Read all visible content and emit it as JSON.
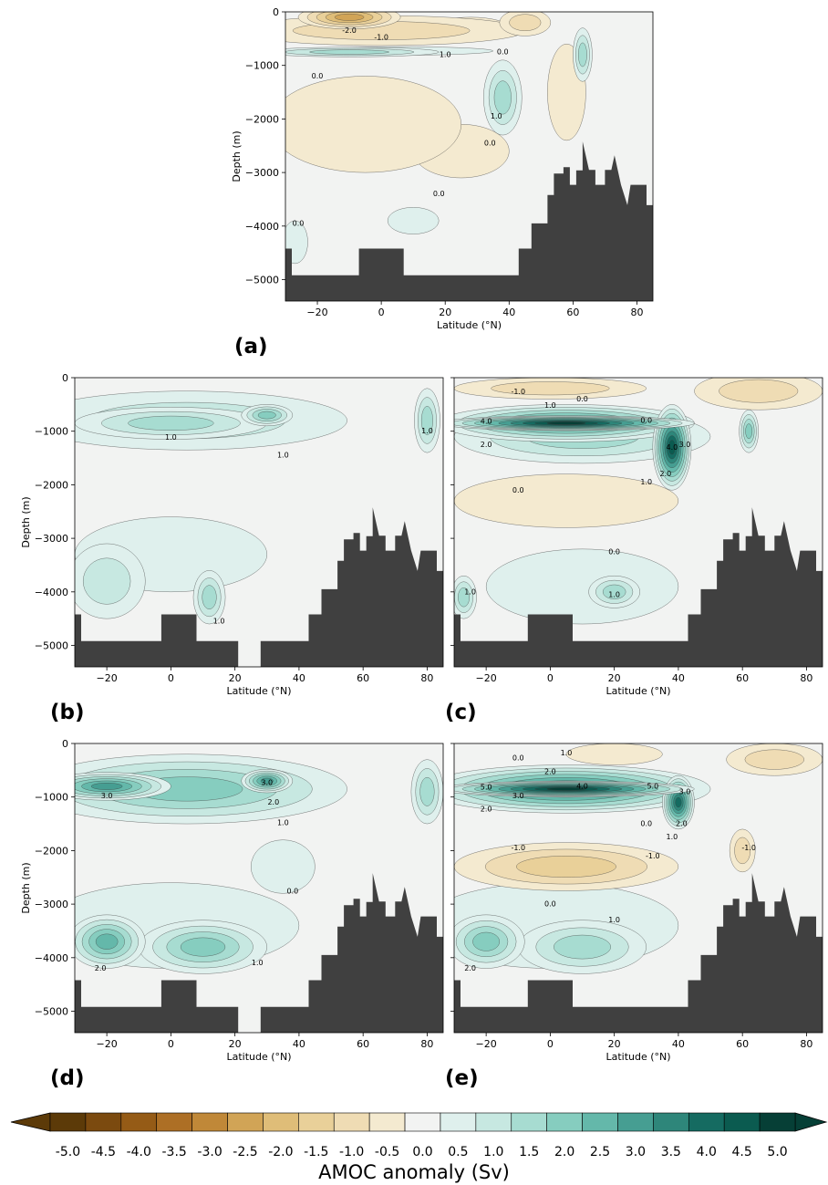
{
  "figure": {
    "colorbar": {
      "title": "AMOC anomaly  (Sv)",
      "levels": [
        -5.0,
        -4.5,
        -4.0,
        -3.5,
        -3.0,
        -2.5,
        -2.0,
        -1.5,
        -1.0,
        -0.5,
        0.0,
        0.5,
        1.0,
        1.5,
        2.0,
        2.5,
        3.0,
        3.5,
        4.0,
        4.5,
        5.0
      ],
      "tick_labels": [
        "-5.0",
        "-4.5",
        "-4.0",
        "-3.5",
        "-3.0",
        "-2.5",
        "-2.0",
        "-1.5",
        "-1.0",
        "-0.5",
        "0.0",
        "0.5",
        "1.0",
        "1.5",
        "2.0",
        "2.5",
        "3.0",
        "3.5",
        "4.0",
        "4.5",
        "5.0"
      ],
      "colors": [
        "#5c3a08",
        "#7b4a0f",
        "#955b16",
        "#ad6f25",
        "#c08838",
        "#d1a456",
        "#dfbd78",
        "#e9d099",
        "#efdcb4",
        "#f4ead0",
        "#f2f3f2",
        "#dff0ed",
        "#c7e8e1",
        "#a7dcd1",
        "#86cdbf",
        "#64b8aa",
        "#469e92",
        "#2e867a",
        "#156b61",
        "#0b5b50",
        "#063f36"
      ],
      "extend": "both"
    },
    "land_color": "#404040"
  },
  "chart_data": [
    {
      "panel": "(a)",
      "type": "heatmap",
      "xlabel": "Latitude (°N)",
      "ylabel": "Depth (m)",
      "xlim": [
        -30,
        85
      ],
      "ylim": [
        -5400,
        0
      ],
      "xticks": [
        -20,
        0,
        20,
        40,
        60,
        80
      ],
      "xtick_labels": [
        "−20",
        "0",
        "20",
        "40",
        "60",
        "80"
      ],
      "yticks": [
        0,
        -1000,
        -2000,
        -3000,
        -4000,
        -5000
      ],
      "ytick_labels": [
        "0",
        "−1000",
        "−2000",
        "−3000",
        "−4000",
        "−5000"
      ],
      "features": [
        {
          "lat": -10,
          "depth": -100,
          "rx": 16,
          "rz": 220,
          "value": -2.5
        },
        {
          "lat": 0,
          "depth": -350,
          "rx": 45,
          "rz": 280,
          "value": -1.0
        },
        {
          "lat": 28,
          "depth": -300,
          "rx": 12,
          "rz": 200,
          "value": -0.8
        },
        {
          "lat": 45,
          "depth": -200,
          "rx": 8,
          "rz": 250,
          "value": -1.2
        },
        {
          "lat": -10,
          "depth": -750,
          "rx": 28,
          "rz": 90,
          "value": 1.3
        },
        {
          "lat": 5,
          "depth": -730,
          "rx": 30,
          "rz": 80,
          "value": 0.5
        },
        {
          "lat": 38,
          "depth": -1600,
          "rx": 6,
          "rz": 700,
          "value": 1.6
        },
        {
          "lat": 63,
          "depth": -800,
          "rx": 3,
          "rz": 500,
          "value": 1.5
        },
        {
          "lat": 58,
          "depth": -1500,
          "rx": 6,
          "rz": 900,
          "value": -0.6
        },
        {
          "lat": -5,
          "depth": -2100,
          "rx": 30,
          "rz": 900,
          "value": -0.7
        },
        {
          "lat": 25,
          "depth": -2600,
          "rx": 15,
          "rz": 500,
          "value": -0.4
        },
        {
          "lat": -27,
          "depth": -4300,
          "rx": 4,
          "rz": 400,
          "value": 0.6
        },
        {
          "lat": 10,
          "depth": -3900,
          "rx": 8,
          "rz": 250,
          "value": 0.5
        }
      ],
      "contour_labels": [
        {
          "text": "-2.0",
          "lat": -10,
          "depth": -350
        },
        {
          "text": "-1.0",
          "lat": 0,
          "depth": -480
        },
        {
          "text": "1.0",
          "lat": 20,
          "depth": -800
        },
        {
          "text": "0.0",
          "lat": -20,
          "depth": -1200
        },
        {
          "text": "0.0",
          "lat": 38,
          "depth": -750
        },
        {
          "text": "1.0",
          "lat": 36,
          "depth": -1950
        },
        {
          "text": "0.0",
          "lat": 34,
          "depth": -2450
        },
        {
          "text": "0.0",
          "lat": 18,
          "depth": -3400
        },
        {
          "text": "0.0",
          "lat": -26,
          "depth": -3950
        }
      ]
    },
    {
      "panel": "(b)",
      "type": "heatmap",
      "xlabel": "Latitude (°N)",
      "ylabel": "Depth (m)",
      "xlim": [
        -30,
        85
      ],
      "ylim": [
        -5400,
        0
      ],
      "xticks": [
        -20,
        0,
        20,
        40,
        60,
        80
      ],
      "xtick_labels": [
        "−20",
        "0",
        "20",
        "40",
        "60",
        "80"
      ],
      "yticks": [
        0,
        -1000,
        -2000,
        -3000,
        -4000,
        -5000
      ],
      "ytick_labels": [
        "0",
        "−1000",
        "−2000",
        "−3000",
        "−4000",
        "−5000"
      ],
      "features": [
        {
          "lat": 5,
          "depth": -800,
          "rx": 50,
          "rz": 550,
          "value": 1.0
        },
        {
          "lat": 0,
          "depth": -850,
          "rx": 30,
          "rz": 300,
          "value": 1.4
        },
        {
          "lat": 30,
          "depth": -700,
          "rx": 8,
          "rz": 200,
          "value": 1.9
        },
        {
          "lat": 80,
          "depth": -800,
          "rx": 4,
          "rz": 600,
          "value": 1.5
        },
        {
          "lat": -20,
          "depth": -3800,
          "rx": 12,
          "rz": 700,
          "value": 0.8
        },
        {
          "lat": 12,
          "depth": -4100,
          "rx": 5,
          "rz": 500,
          "value": 1.7
        },
        {
          "lat": 0,
          "depth": -3300,
          "rx": 30,
          "rz": 700,
          "value": 0.4
        }
      ],
      "contour_labels": [
        {
          "text": "1.0",
          "lat": 0,
          "depth": -1120
        },
        {
          "text": "1.0",
          "lat": 35,
          "depth": -1450
        },
        {
          "text": "1.0",
          "lat": 80,
          "depth": -1000
        },
        {
          "text": "1.0",
          "lat": 15,
          "depth": -4550
        }
      ]
    },
    {
      "panel": "(c)",
      "type": "heatmap",
      "xlabel": "Latitude (°N)",
      "ylabel": "",
      "xlim": [
        -30,
        85
      ],
      "ylim": [
        -5400,
        0
      ],
      "xticks": [
        -20,
        0,
        20,
        40,
        60,
        80
      ],
      "xtick_labels": [
        "−20",
        "0",
        "20",
        "40",
        "60",
        "80"
      ],
      "yticks": [
        0,
        -1000,
        -2000,
        -3000,
        -4000,
        -5000
      ],
      "ytick_labels": [
        "",
        "",
        "",
        "",
        "",
        ""
      ],
      "features": [
        {
          "lat": 5,
          "depth": -850,
          "rx": 40,
          "rz": 350,
          "value": 3.0
        },
        {
          "lat": 5,
          "depth": -850,
          "rx": 40,
          "rz": 140,
          "value": 4.8
        },
        {
          "lat": 38,
          "depth": -1300,
          "rx": 6,
          "rz": 800,
          "value": 4.5
        },
        {
          "lat": 10,
          "depth": -1100,
          "rx": 40,
          "rz": 500,
          "value": 1.6
        },
        {
          "lat": 0,
          "depth": -200,
          "rx": 30,
          "rz": 200,
          "value": -1.0
        },
        {
          "lat": 65,
          "depth": -250,
          "rx": 20,
          "rz": 350,
          "value": -0.8
        },
        {
          "lat": 62,
          "depth": -1000,
          "rx": 3,
          "rz": 400,
          "value": 1.8
        },
        {
          "lat": 5,
          "depth": -2300,
          "rx": 35,
          "rz": 500,
          "value": -0.6
        },
        {
          "lat": -27,
          "depth": -4100,
          "rx": 4,
          "rz": 400,
          "value": 1.5
        },
        {
          "lat": 20,
          "depth": -4000,
          "rx": 8,
          "rz": 300,
          "value": 1.6
        },
        {
          "lat": 10,
          "depth": -3900,
          "rx": 30,
          "rz": 700,
          "value": 0.6
        }
      ],
      "contour_labels": [
        {
          "text": "-1.0",
          "lat": -10,
          "depth": -260
        },
        {
          "text": "1.0",
          "lat": 0,
          "depth": -520
        },
        {
          "text": "0.0",
          "lat": 10,
          "depth": -400
        },
        {
          "text": "4.0",
          "lat": -20,
          "depth": -820
        },
        {
          "text": "2.0",
          "lat": -20,
          "depth": -1250
        },
        {
          "text": "0.0",
          "lat": 30,
          "depth": -800
        },
        {
          "text": "4.0",
          "lat": 38,
          "depth": -1300
        },
        {
          "text": "3.0",
          "lat": 42,
          "depth": -1250
        },
        {
          "text": "2.0",
          "lat": 36,
          "depth": -1800
        },
        {
          "text": "1.0",
          "lat": 30,
          "depth": -1950
        },
        {
          "text": "0.0",
          "lat": -10,
          "depth": -2100
        },
        {
          "text": "0.0",
          "lat": 20,
          "depth": -3250
        },
        {
          "text": "1.0",
          "lat": -25,
          "depth": -4000
        },
        {
          "text": "1.0",
          "lat": 20,
          "depth": -4050
        }
      ]
    },
    {
      "panel": "(d)",
      "type": "heatmap",
      "xlabel": "Latitude (°N)",
      "ylabel": "Depth (m)",
      "xlim": [
        -30,
        85
      ],
      "ylim": [
        -5400,
        0
      ],
      "xticks": [
        -20,
        0,
        20,
        40,
        60,
        80
      ],
      "xtick_labels": [
        "−20",
        "0",
        "20",
        "40",
        "60",
        "80"
      ],
      "yticks": [
        0,
        -1000,
        -2000,
        -3000,
        -4000,
        -5000
      ],
      "ytick_labels": [
        "0",
        "−1000",
        "−2000",
        "−3000",
        "−4000",
        "−5000"
      ],
      "features": [
        {
          "lat": 5,
          "depth": -850,
          "rx": 50,
          "rz": 650,
          "value": 2.2
        },
        {
          "lat": -20,
          "depth": -800,
          "rx": 20,
          "rz": 260,
          "value": 3.2
        },
        {
          "lat": 30,
          "depth": -700,
          "rx": 8,
          "rz": 220,
          "value": 3.2
        },
        {
          "lat": 80,
          "depth": -900,
          "rx": 5,
          "rz": 600,
          "value": 1.6
        },
        {
          "lat": 35,
          "depth": -2300,
          "rx": 10,
          "rz": 500,
          "value": 0.3
        },
        {
          "lat": -20,
          "depth": -3700,
          "rx": 12,
          "rz": 500,
          "value": 2.3
        },
        {
          "lat": 10,
          "depth": -3800,
          "rx": 20,
          "rz": 500,
          "value": 1.8
        },
        {
          "lat": 0,
          "depth": -3400,
          "rx": 40,
          "rz": 800,
          "value": 0.7
        }
      ],
      "contour_labels": [
        {
          "text": "3.0",
          "lat": -20,
          "depth": -980
        },
        {
          "text": "3.0",
          "lat": 30,
          "depth": -730
        },
        {
          "text": "2.0",
          "lat": 32,
          "depth": -1100
        },
        {
          "text": "1.0",
          "lat": 35,
          "depth": -1480
        },
        {
          "text": "0.0",
          "lat": 38,
          "depth": -2760
        },
        {
          "text": "2.0",
          "lat": -22,
          "depth": -4200
        },
        {
          "text": "1.0",
          "lat": 27,
          "depth": -4100
        }
      ]
    },
    {
      "panel": "(e)",
      "type": "heatmap",
      "xlabel": "Latitude (°N)",
      "ylabel": "",
      "xlim": [
        -30,
        85
      ],
      "ylim": [
        -5400,
        0
      ],
      "xticks": [
        -20,
        0,
        20,
        40,
        60,
        80
      ],
      "xtick_labels": [
        "−20",
        "0",
        "20",
        "40",
        "60",
        "80"
      ],
      "yticks": [
        0,
        -1000,
        -2000,
        -3000,
        -4000,
        -5000
      ],
      "ytick_labels": [
        "",
        "",
        "",
        "",
        "",
        ""
      ],
      "features": [
        {
          "lat": 5,
          "depth": -850,
          "rx": 45,
          "rz": 450,
          "value": 3.4
        },
        {
          "lat": 5,
          "depth": -850,
          "rx": 40,
          "rz": 150,
          "value": 5.2
        },
        {
          "lat": 40,
          "depth": -1100,
          "rx": 5,
          "rz": 500,
          "value": 4.0
        },
        {
          "lat": 20,
          "depth": -200,
          "rx": 15,
          "rz": 200,
          "value": -0.7
        },
        {
          "lat": 70,
          "depth": -300,
          "rx": 15,
          "rz": 300,
          "value": -0.8
        },
        {
          "lat": 5,
          "depth": -2300,
          "rx": 35,
          "rz": 450,
          "value": -1.3
        },
        {
          "lat": 60,
          "depth": -2000,
          "rx": 4,
          "rz": 400,
          "value": -1.0
        },
        {
          "lat": -20,
          "depth": -3700,
          "rx": 12,
          "rz": 500,
          "value": 2.2
        },
        {
          "lat": 10,
          "depth": -3800,
          "rx": 20,
          "rz": 500,
          "value": 1.6
        },
        {
          "lat": 0,
          "depth": -3400,
          "rx": 40,
          "rz": 800,
          "value": 0.7
        }
      ],
      "contour_labels": [
        {
          "text": "0.0",
          "lat": -10,
          "depth": -270
        },
        {
          "text": "1.0",
          "lat": 5,
          "depth": -180
        },
        {
          "text": "2.0",
          "lat": 0,
          "depth": -530
        },
        {
          "text": "5.0",
          "lat": -20,
          "depth": -820
        },
        {
          "text": "4.0",
          "lat": 10,
          "depth": -800
        },
        {
          "text": "5.0",
          "lat": 32,
          "depth": -800
        },
        {
          "text": "3.0",
          "lat": -10,
          "depth": -980
        },
        {
          "text": "2.0",
          "lat": -20,
          "depth": -1230
        },
        {
          "text": "3.0",
          "lat": 42,
          "depth": -900
        },
        {
          "text": "2.0",
          "lat": 41,
          "depth": -1500
        },
        {
          "text": "1.0",
          "lat": 38,
          "depth": -1750
        },
        {
          "text": "0.0",
          "lat": 30,
          "depth": -1500
        },
        {
          "text": "-1.0",
          "lat": -10,
          "depth": -1950
        },
        {
          "text": "-1.0",
          "lat": 32,
          "depth": -2100
        },
        {
          "text": "-1.0",
          "lat": 62,
          "depth": -1950
        },
        {
          "text": "0.0",
          "lat": 0,
          "depth": -3000
        },
        {
          "text": "1.0",
          "lat": 20,
          "depth": -3300
        },
        {
          "text": "2.0",
          "lat": -25,
          "depth": -4200
        }
      ]
    }
  ]
}
